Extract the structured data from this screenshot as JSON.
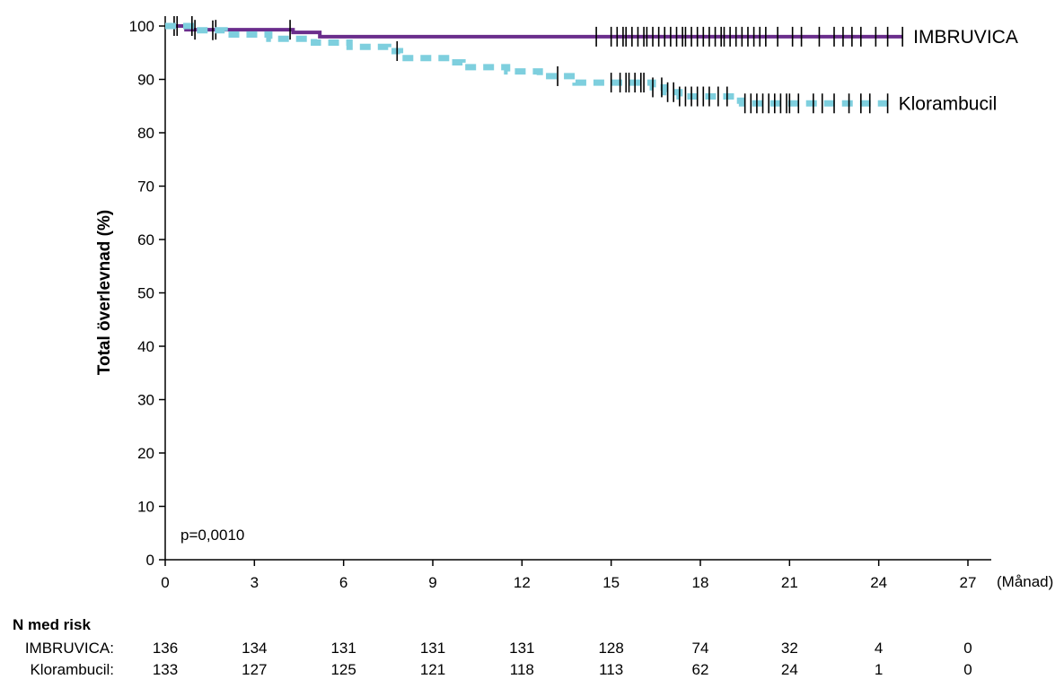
{
  "chart_data": {
    "type": "line",
    "xlabel": "(Månad)",
    "ylabel": "Total överlevnad (%)",
    "xlim": [
      0,
      27
    ],
    "ylim": [
      0,
      100
    ],
    "xticks": [
      0,
      3,
      6,
      9,
      12,
      15,
      18,
      21,
      24,
      27
    ],
    "yticks": [
      0,
      10,
      20,
      30,
      40,
      50,
      60,
      70,
      80,
      90,
      100
    ],
    "annotation": "p=0,0010",
    "series": [
      {
        "name": "IMBRUVICA",
        "color": "#6a2d8c",
        "style": "solid",
        "steps": [
          [
            0,
            100
          ],
          [
            0.7,
            99.3
          ],
          [
            4.3,
            98.8
          ],
          [
            5.2,
            98.0
          ],
          [
            24.8,
            98.0
          ]
        ],
        "censors": [
          0.3,
          1.0,
          1.7,
          4.2,
          14.5,
          15.0,
          15.2,
          15.4,
          15.5,
          15.7,
          15.9,
          16.1,
          16.2,
          16.4,
          16.6,
          16.8,
          17.0,
          17.2,
          17.4,
          17.5,
          17.7,
          17.9,
          18.1,
          18.3,
          18.5,
          18.7,
          18.8,
          19.0,
          19.2,
          19.4,
          19.6,
          19.8,
          20.0,
          20.2,
          20.6,
          21.1,
          21.4,
          22.0,
          22.5,
          22.8,
          23.1,
          23.4,
          23.9,
          24.3,
          24.8
        ]
      },
      {
        "name": "Klorambucil",
        "color": "#7ecfde",
        "style": "dashed",
        "steps": [
          [
            0,
            100
          ],
          [
            1.0,
            99.2
          ],
          [
            2.0,
            98.4
          ],
          [
            3.5,
            97.6
          ],
          [
            5.0,
            96.9
          ],
          [
            6.2,
            96.1
          ],
          [
            7.5,
            95.3
          ],
          [
            7.9,
            94.0
          ],
          [
            9.6,
            93.2
          ],
          [
            10.0,
            92.3
          ],
          [
            11.5,
            91.5
          ],
          [
            12.6,
            90.6
          ],
          [
            13.8,
            89.4
          ],
          [
            15.0,
            89.4
          ],
          [
            16.4,
            88.5
          ],
          [
            16.8,
            87.6
          ],
          [
            17.3,
            86.8
          ],
          [
            19.2,
            86.0
          ],
          [
            19.4,
            85.5
          ],
          [
            24.3,
            85.5
          ]
        ],
        "censors": [
          0.4,
          0.9,
          1.6,
          7.8,
          13.2,
          15.0,
          15.3,
          15.5,
          15.6,
          15.8,
          16.0,
          16.1,
          16.4,
          16.7,
          16.9,
          17.1,
          17.3,
          17.5,
          17.7,
          17.9,
          18.1,
          18.3,
          18.6,
          18.9,
          19.5,
          19.7,
          19.9,
          20.1,
          20.3,
          20.5,
          20.7,
          20.9,
          21.0,
          21.3,
          21.8,
          22.1,
          22.5,
          23.0,
          23.4,
          23.7,
          24.3
        ]
      }
    ],
    "risk_table": {
      "title": "N med risk",
      "rows": [
        {
          "label": "IMBRUVICA:",
          "values": [
            "136",
            "134",
            "131",
            "131",
            "131",
            "128",
            "74",
            "32",
            "4",
            "0"
          ]
        },
        {
          "label": "Klorambucil:",
          "values": [
            "133",
            "127",
            "125",
            "121",
            "118",
            "113",
            "62",
            "24",
            "1",
            "0"
          ]
        }
      ]
    }
  }
}
